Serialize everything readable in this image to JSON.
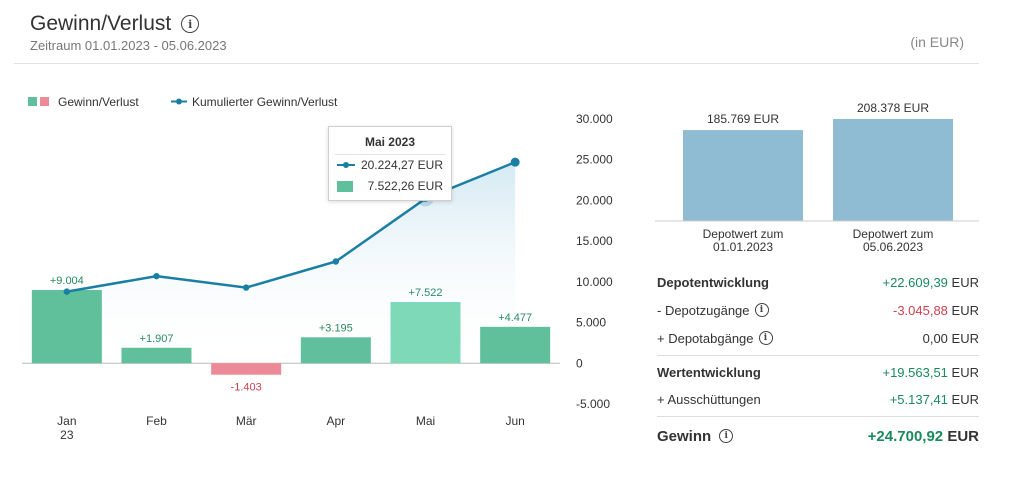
{
  "header": {
    "title": "Gewinn/Verlust",
    "period": "Zeitraum 01.01.2023 - 05.06.2023",
    "currency_note": "(in EUR)"
  },
  "legend": {
    "bars_label": "Gewinn/Verlust",
    "line_label": "Kumulierter Gewinn/Verlust"
  },
  "tooltip": {
    "title": "Mai 2023",
    "line_value": "20.224,27 EUR",
    "bar_value": "7.522,26 EUR"
  },
  "chart_data": [
    {
      "type": "bar",
      "categories": [
        "Jan",
        "Feb",
        "Mär",
        "Apr",
        "Mai",
        "Jun"
      ],
      "category_sublabels": [
        "23",
        "",
        "",
        "",
        "",
        ""
      ],
      "series": [
        {
          "name": "Gewinn/Verlust",
          "type": "bar",
          "values": [
            9004,
            1907,
            -1403,
            3195,
            7522,
            4477
          ],
          "labels": [
            "+9.004",
            "+1.907",
            "-1.403",
            "+3.195",
            "+7.522",
            "+4.477"
          ]
        },
        {
          "name": "Kumulierter Gewinn/Verlust",
          "type": "line",
          "values": [
            8800,
            10700,
            9300,
            12500,
            20224,
            24700
          ]
        }
      ],
      "y_ticks": [
        "30.000",
        "25.000",
        "20.000",
        "15.000",
        "10.000",
        "5.000",
        "0",
        "-5.000"
      ],
      "ylim": [
        -5000,
        30000
      ],
      "y_axis_side": "right",
      "highlighted_category": "Mai",
      "colors": {
        "bar_positive": "#5fc09b",
        "bar_positive_highlight": "#7dd9b8",
        "bar_negative": "#ec8a97",
        "line": "#1a7fa3",
        "area_fill": "#e3f1f7",
        "label_positive": "#2a8a60",
        "label_negative": "#d0404f"
      }
    },
    {
      "type": "bar",
      "categories": [
        "Depotwert zum 01.01.2023",
        "Depotwert zum 05.06.2023"
      ],
      "category_lines": [
        [
          "Depotwert zum",
          "01.01.2023"
        ],
        [
          "Depotwert zum",
          "05.06.2023"
        ]
      ],
      "values": [
        185769,
        208378
      ],
      "labels": [
        "185.769 EUR",
        "208.378 EUR"
      ],
      "ylim": [
        0,
        208378
      ],
      "colors": {
        "bar": "#8fbcd2"
      }
    }
  ],
  "summary": {
    "depotentwicklung": {
      "label": "Depotentwicklung",
      "value": "+22.609,39",
      "unit": "EUR"
    },
    "depotzugaenge": {
      "label": "- Depotzugänge",
      "value": "-3.045,88",
      "unit": "EUR"
    },
    "depotabgaenge": {
      "label": "+ Depotabgänge",
      "value": "0,00",
      "unit": "EUR"
    },
    "wertentwicklung": {
      "label": "Wertentwicklung",
      "value": "+19.563,51",
      "unit": "EUR"
    },
    "ausschuettungen": {
      "label": "+ Ausschüttungen",
      "value": "+5.137,41",
      "unit": "EUR"
    },
    "gewinn": {
      "label": "Gewinn",
      "value": "+24.700,92",
      "unit": "EUR"
    }
  },
  "icons": {
    "info": "info-icon",
    "info_glyph": "i"
  }
}
